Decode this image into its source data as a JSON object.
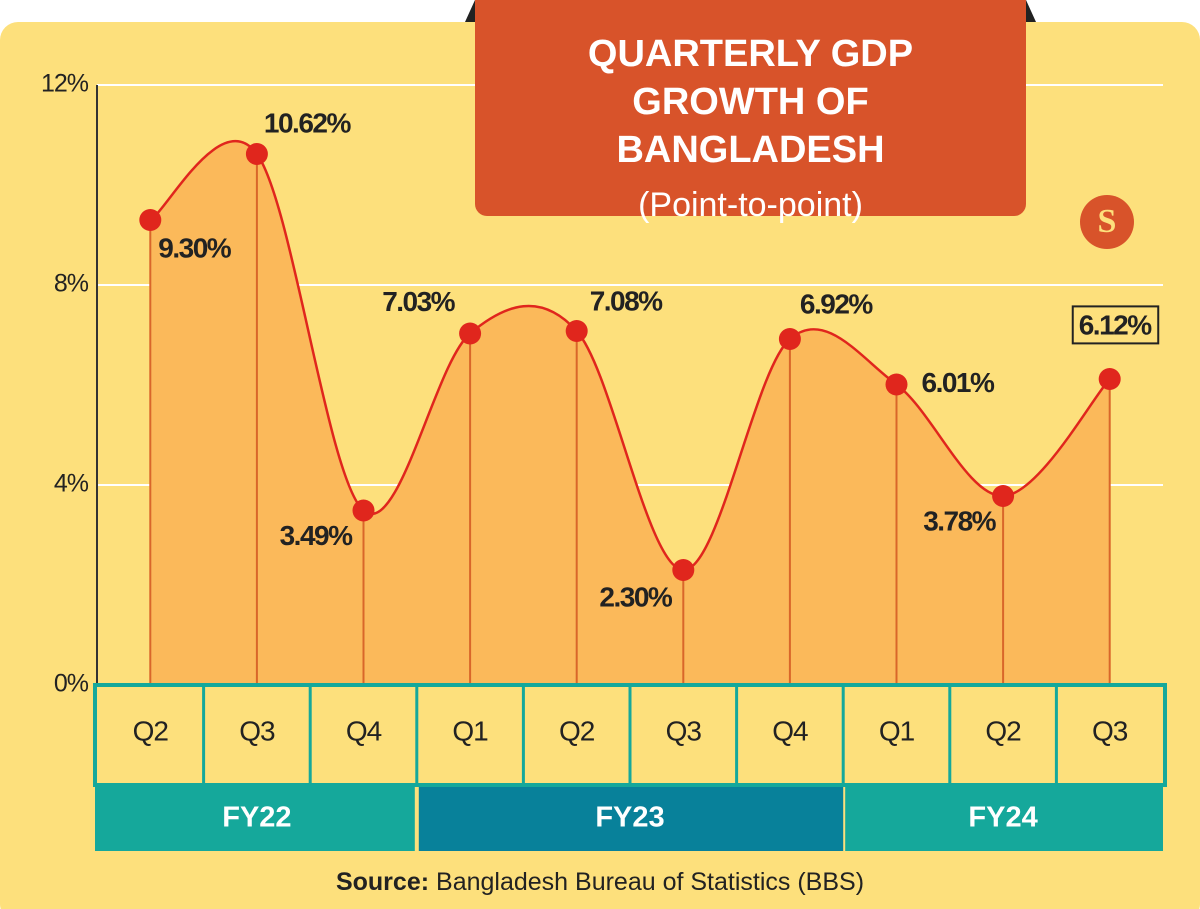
{
  "chart_data": {
    "type": "line",
    "title": "QUARTERLY GDP GROWTH OF BANGLADESH",
    "subtitle": "(Point-to-point)",
    "logo": "S",
    "categories": [
      "Q2",
      "Q3",
      "Q4",
      "Q1",
      "Q2",
      "Q3",
      "Q4",
      "Q1",
      "Q2",
      "Q3"
    ],
    "groups": [
      {
        "label": "FY22",
        "span": 3,
        "color": "#15a89b"
      },
      {
        "label": "FY23",
        "span": 4,
        "color": "#08819a"
      },
      {
        "label": "FY24",
        "span": 3,
        "color": "#15a89b"
      }
    ],
    "series": [
      {
        "name": "GDP growth",
        "color": "#e0261d",
        "fill": "#fbb95a",
        "values": [
          9.3,
          10.62,
          3.49,
          7.03,
          7.08,
          2.3,
          6.92,
          6.01,
          3.78,
          6.12
        ],
        "value_labels": [
          "9.30%",
          "10.62%",
          "3.49%",
          "7.03%",
          "7.08%",
          "2.30%",
          "6.92%",
          "6.01%",
          "3.78%",
          "6.12%"
        ]
      }
    ],
    "ylim": [
      0,
      12
    ],
    "yticks": [
      {
        "value": 0,
        "label": "0%"
      },
      {
        "value": 4,
        "label": "4%"
      },
      {
        "value": 8,
        "label": "8%"
      },
      {
        "value": 12,
        "label": "12%"
      }
    ],
    "grid": true,
    "source": {
      "label": "Source:",
      "text": "Bangladesh Bureau of Statistics (BBS)"
    }
  }
}
